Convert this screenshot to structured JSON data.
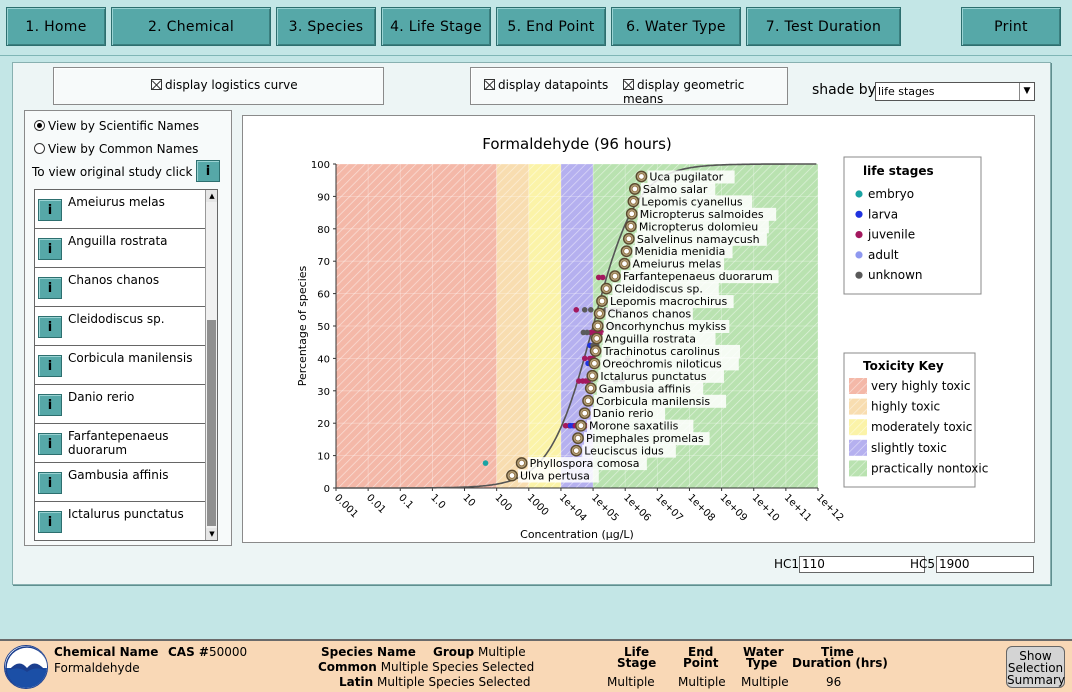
{
  "nav": {
    "home": "1. Home",
    "chemical": "2.  Chemical",
    "species": "3. Species",
    "life_stage": "4. Life Stage",
    "end_point": "5. End Point",
    "water_type": "6. Water Type",
    "test_duration": "7. Test Duration",
    "print": "Print"
  },
  "options": {
    "logistics_curve": "display logistics curve",
    "datapoints": "display datapoints",
    "geometric_means": "display geometric means",
    "shade_by_label": "shade by",
    "shade_by_value": "life stages"
  },
  "species_panel": {
    "view_scientific": "View by Scientific Names",
    "view_common": "View by Common Names",
    "view_study_hint": "To view original study click on",
    "info_button": "i",
    "species": [
      "Ameiurus melas",
      "Anguilla rostrata",
      "Chanos chanos",
      "Cleidodiscus sp.",
      "Corbicula manilensis",
      "Danio rerio",
      "Farfantepenaeus duorarum",
      "Gambusia affinis",
      "Ictalurus punctatus"
    ]
  },
  "hc": {
    "hc1_label": "HC1",
    "hc1_value": "110",
    "hc5_label": "HC5",
    "hc5_value": "1900"
  },
  "chart_data": {
    "type": "scatter",
    "title": "Formaldehyde  (96 hours)",
    "xlabel": "Concentration (µg/L)",
    "ylabel": "Percentage of species",
    "x_scale": "log",
    "x_tick_labels": [
      "0.001",
      "0.01",
      "0.1",
      "1.0",
      "10",
      "100",
      "1000",
      "1e+04",
      "1e+05",
      "1e+06",
      "1e+07",
      "1e+08",
      "1e+09",
      "1e+10",
      "1e+11",
      "1e+12"
    ],
    "y_ticks": [
      0,
      10,
      20,
      30,
      40,
      50,
      60,
      70,
      80,
      90,
      100
    ],
    "ylim": [
      0,
      100
    ],
    "toxicity_bands": [
      {
        "label": "very highly toxic",
        "from": 0.001,
        "to": 100,
        "color": "#f4b8a8"
      },
      {
        "label": "highly toxic",
        "from": 100,
        "to": 1000,
        "color": "#f8ddb0"
      },
      {
        "label": "moderately toxic",
        "from": 1000,
        "to": 10000,
        "color": "#fbf3a8"
      },
      {
        "label": "slightly toxic",
        "from": 10000,
        "to": 100000,
        "color": "#b5b0ef"
      },
      {
        "label": "practically nontoxic",
        "from": 100000,
        "to": 1000000000000.0,
        "color": "#b9e2b0"
      }
    ],
    "curve_logistic": {
      "midpoint": 100000,
      "width_log10": 0.68
    },
    "geometric_means": [
      {
        "species": "Ulva pertusa",
        "x": 300,
        "y": 3.85
      },
      {
        "species": "Phyllospora comosa",
        "x": 600,
        "y": 7.69
      },
      {
        "species": "Leuciscus idus",
        "x": 30000,
        "y": 11.54
      },
      {
        "species": "Pimephales promelas",
        "x": 34000,
        "y": 15.38
      },
      {
        "species": "Morone saxatilis",
        "x": 42000,
        "y": 19.23
      },
      {
        "species": "Danio rerio",
        "x": 55000,
        "y": 23.08
      },
      {
        "species": "Corbicula manilensis",
        "x": 70000,
        "y": 26.92
      },
      {
        "species": "Gambusia affinis",
        "x": 85000,
        "y": 30.77
      },
      {
        "species": "Ictalurus punctatus",
        "x": 95000,
        "y": 34.62
      },
      {
        "species": "Oreochromis niloticus",
        "x": 110000,
        "y": 38.46
      },
      {
        "species": "Trachinotus carolinus",
        "x": 120000,
        "y": 42.31
      },
      {
        "species": "Anguilla rostrata",
        "x": 130000,
        "y": 46.15
      },
      {
        "species": "Oncorhynchus mykiss",
        "x": 140000,
        "y": 50.0
      },
      {
        "species": "Chanos chanos",
        "x": 160000,
        "y": 53.85
      },
      {
        "species": "Lepomis macrochirus",
        "x": 190000,
        "y": 57.69
      },
      {
        "species": "Cleidodiscus sp.",
        "x": 260000,
        "y": 61.54
      },
      {
        "species": "Farfantepenaeus duorarum",
        "x": 480000,
        "y": 65.38
      },
      {
        "species": "Ameiurus melas",
        "x": 950000,
        "y": 69.23
      },
      {
        "species": "Menidia menidia",
        "x": 1100000,
        "y": 73.08
      },
      {
        "species": "Salvelinus namaycush",
        "x": 1300000,
        "y": 76.92
      },
      {
        "species": "Micropterus dolomieu",
        "x": 1500000,
        "y": 80.77
      },
      {
        "species": "Micropterus salmoides",
        "x": 1600000,
        "y": 84.62
      },
      {
        "species": "Lepomis cyanellus",
        "x": 1800000,
        "y": 88.46
      },
      {
        "species": "Salmo salar",
        "x": 2000000,
        "y": 92.31
      },
      {
        "species": "Uca pugilator",
        "x": 3200000,
        "y": 96.15
      }
    ],
    "datapoints": [
      {
        "x": 45,
        "y": 7.69,
        "stage": "embryo"
      },
      {
        "x": 600,
        "y": 7.69,
        "stage": "unknown"
      },
      {
        "x": 14000,
        "y": 19.23,
        "stage": "juvenile"
      },
      {
        "x": 18000,
        "y": 19.23,
        "stage": "juvenile"
      },
      {
        "x": 20000,
        "y": 19.23,
        "stage": "larva"
      },
      {
        "x": 24000,
        "y": 19.23,
        "stage": "larva"
      },
      {
        "x": 28000,
        "y": 19.23,
        "stage": "juvenile"
      },
      {
        "x": 40000,
        "y": 19.23,
        "stage": "juvenile"
      },
      {
        "x": 50000,
        "y": 19.23,
        "stage": "juvenile"
      },
      {
        "x": 60000,
        "y": 19.23,
        "stage": "juvenile"
      },
      {
        "x": 36000,
        "y": 33.0,
        "stage": "juvenile"
      },
      {
        "x": 48000,
        "y": 33.0,
        "stage": "juvenile"
      },
      {
        "x": 60000,
        "y": 33.0,
        "stage": "juvenile"
      },
      {
        "x": 70000,
        "y": 33.0,
        "stage": "juvenile"
      },
      {
        "x": 70000,
        "y": 38.46,
        "stage": "larva"
      },
      {
        "x": 55000,
        "y": 40.0,
        "stage": "juvenile"
      },
      {
        "x": 80000,
        "y": 40.0,
        "stage": "juvenile"
      },
      {
        "x": 100000,
        "y": 40.0,
        "stage": "juvenile"
      },
      {
        "x": 80000,
        "y": 44.0,
        "stage": "larva"
      },
      {
        "x": 100000,
        "y": 44.0,
        "stage": "unknown"
      },
      {
        "x": 130000,
        "y": 44.0,
        "stage": "unknown"
      },
      {
        "x": 85000,
        "y": 48.0,
        "stage": "juvenile"
      },
      {
        "x": 110000,
        "y": 48.0,
        "stage": "juvenile"
      },
      {
        "x": 140000,
        "y": 48.0,
        "stage": "juvenile"
      },
      {
        "x": 180000,
        "y": 48.0,
        "stage": "juvenile"
      },
      {
        "x": 50000,
        "y": 48.0,
        "stage": "unknown"
      },
      {
        "x": 65000,
        "y": 48.0,
        "stage": "unknown"
      },
      {
        "x": 55000,
        "y": 55.0,
        "stage": "unknown"
      },
      {
        "x": 85000,
        "y": 55.0,
        "stage": "unknown"
      },
      {
        "x": 30000,
        "y": 55.0,
        "stage": "juvenile"
      },
      {
        "x": 250000,
        "y": 55.0,
        "stage": "unknown"
      },
      {
        "x": 400000,
        "y": 55.0,
        "stage": "unknown"
      },
      {
        "x": 500000,
        "y": 55.0,
        "stage": "unknown"
      },
      {
        "x": 700000,
        "y": 55.0,
        "stage": "unknown"
      },
      {
        "x": 150000,
        "y": 65.0,
        "stage": "juvenile"
      },
      {
        "x": 200000,
        "y": 65.0,
        "stage": "juvenile"
      },
      {
        "x": 2000000,
        "y": 65.0,
        "stage": "unknown"
      },
      {
        "x": 3500000,
        "y": 65.0,
        "stage": "unknown"
      },
      {
        "x": 400000,
        "y": 50.0,
        "stage": "unknown"
      },
      {
        "x": 600000,
        "y": 50.0,
        "stage": "unknown"
      },
      {
        "x": 900000,
        "y": 50.0,
        "stage": "unknown"
      },
      {
        "x": 1200000,
        "y": 40.0,
        "stage": "unknown"
      },
      {
        "x": 800000,
        "y": 33.0,
        "stage": "unknown"
      },
      {
        "x": 500000,
        "y": 33.0,
        "stage": "unknown"
      }
    ]
  },
  "life_stages_legend": {
    "title": "life stages",
    "items": [
      {
        "label": "embryo",
        "color": "#1aa3a3"
      },
      {
        "label": "larva",
        "color": "#1f33e0"
      },
      {
        "label": "juvenile",
        "color": "#a3185e"
      },
      {
        "label": "adult",
        "color": "#8f99f0"
      },
      {
        "label": "unknown",
        "color": "#5a5a5a"
      }
    ]
  },
  "toxicity_legend": {
    "title": "Toxicity Key",
    "items": [
      {
        "label": "very highly toxic",
        "color": "#f4b8a8"
      },
      {
        "label": "highly toxic",
        "color": "#f8ddb0"
      },
      {
        "label": "moderately toxic",
        "color": "#fbf3a8"
      },
      {
        "label": "slightly toxic",
        "color": "#b5b0ef"
      },
      {
        "label": "practically nontoxic",
        "color": "#b9e2b0"
      }
    ]
  },
  "summary": {
    "chemical_name_label": "Chemical Name",
    "chemical_name": "Formaldehyde",
    "cas_label": "CAS #",
    "cas_value": "50000",
    "species_name_label": "Species Name",
    "group_label": "Group",
    "group_value": "Multiple",
    "common_label": "Common",
    "common_value": "Multiple Species Selected",
    "latin_label": "Latin",
    "latin_value": "Multiple Species Selected",
    "life_stage_label_1": "Life",
    "life_stage_label_2": "Stage",
    "life_stage_value": "Multiple",
    "end_point_label_1": "End",
    "end_point_label_2": "Point",
    "end_point_value": "Multiple",
    "water_type_label_1": "Water",
    "water_type_label_2": "Type",
    "water_type_value": "Multiple",
    "time_label_1": "Time",
    "time_label_2": "Duration (hrs)",
    "time_value": "96",
    "show_summary_1": "Show",
    "show_summary_2": "Selection",
    "show_summary_3": "Summary"
  }
}
